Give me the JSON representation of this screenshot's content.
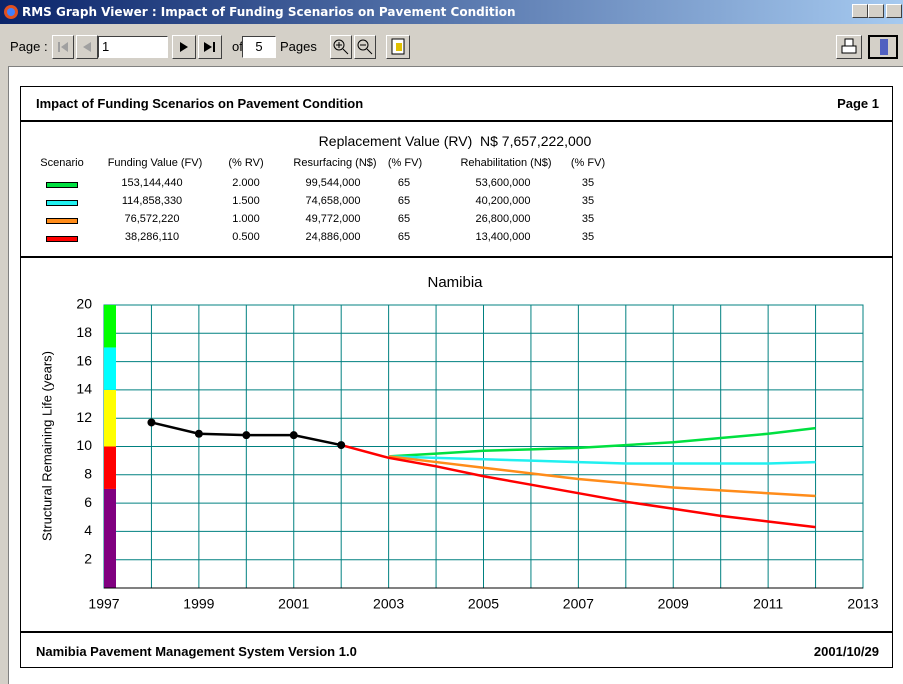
{
  "window": {
    "title": "RMS Graph Viewer : Impact of Funding Scenarios on Pavement Condition"
  },
  "toolbar": {
    "page_label": "Page :",
    "page": "1",
    "of": "of",
    "total": "5",
    "pages": "Pages"
  },
  "report": {
    "title": "Impact of Funding Scenarios on Pavement Condition",
    "page": "Page 1",
    "subtitle": "Replacement Value (RV)  N$ 7,657,222,000",
    "table": {
      "columns": [
        "Scenario",
        "Funding Value (FV)",
        "(% RV)",
        "Resurfacing (N$)",
        "(% FV)",
        "Rehabilitation (N$)",
        "(% FV)"
      ],
      "rows": [
        {
          "color": "#00e040",
          "cells": [
            "153,144,440",
            "2.000",
            "99,544,000",
            "65",
            "53,600,000",
            "35"
          ]
        },
        {
          "color": "#20f0f0",
          "cells": [
            "114,858,330",
            "1.500",
            "74,658,000",
            "65",
            "40,200,000",
            "35"
          ]
        },
        {
          "color": "#ff8c1a",
          "cells": [
            "76,572,220",
            "1.000",
            "49,772,000",
            "65",
            "26,800,000",
            "35"
          ]
        },
        {
          "color": "#ff0000",
          "cells": [
            "38,286,110",
            "0.500",
            "24,886,000",
            "65",
            "13,400,000",
            "35"
          ]
        }
      ]
    },
    "footer": "Namibia Pavement Management System Version 1.0",
    "date": "2001/10/29"
  },
  "chart_data": {
    "type": "line",
    "title": "Namibia",
    "y_label": "Structural Remaining Life (years)",
    "xlim": [
      1997,
      2013
    ],
    "xticks": [
      1997,
      1999,
      2001,
      2003,
      2005,
      2007,
      2009,
      2011,
      2013
    ],
    "minor_xticks": [
      1998,
      2000,
      2002,
      2004,
      2006,
      2008,
      2010,
      2012
    ],
    "ylim": [
      0,
      20
    ],
    "yticks": [
      2,
      4,
      6,
      8,
      10,
      12,
      14,
      16,
      18,
      20
    ],
    "grid": true,
    "grid_color": "#008080",
    "bands": [
      {
        "from": 0,
        "to": 7,
        "color": "#800080"
      },
      {
        "from": 7,
        "to": 10,
        "color": "#ff0000"
      },
      {
        "from": 10,
        "to": 14,
        "color": "#ffff00"
      },
      {
        "from": 14,
        "to": 17,
        "color": "#00ffff"
      },
      {
        "from": 17,
        "to": 20,
        "color": "#00ff00"
      }
    ],
    "series": [
      {
        "color": "#00e040",
        "x": [
          2003,
          2004,
          2005,
          2006,
          2007,
          2008,
          2009,
          2010,
          2011,
          2012
        ],
        "values": [
          9.3,
          9.5,
          9.7,
          9.8,
          9.9,
          10.1,
          10.3,
          10.6,
          10.9,
          11.3
        ]
      },
      {
        "color": "#20f0f0",
        "x": [
          2003,
          2004,
          2005,
          2006,
          2007,
          2008,
          2009,
          2010,
          2011,
          2012
        ],
        "values": [
          9.3,
          9.2,
          9.1,
          9.0,
          8.9,
          8.8,
          8.8,
          8.8,
          8.8,
          8.9
        ]
      },
      {
        "color": "#ff8c1a",
        "x": [
          2003,
          2004,
          2005,
          2006,
          2007,
          2008,
          2009,
          2010,
          2011,
          2012
        ],
        "values": [
          9.3,
          8.9,
          8.5,
          8.1,
          7.7,
          7.4,
          7.1,
          6.9,
          6.7,
          6.5
        ]
      },
      {
        "color": "#ff0000",
        "x": [
          2002,
          2003,
          2004,
          2005,
          2006,
          2007,
          2008,
          2009,
          2010,
          2011,
          2012
        ],
        "values": [
          10.1,
          9.2,
          8.6,
          7.9,
          7.3,
          6.7,
          6.1,
          5.6,
          5.1,
          4.7,
          4.3
        ]
      },
      {
        "color": "#000000",
        "markers": true,
        "x": [
          1998,
          1999,
          2000,
          2001,
          2002
        ],
        "values": [
          11.7,
          10.9,
          10.8,
          10.8,
          10.1
        ]
      }
    ]
  }
}
